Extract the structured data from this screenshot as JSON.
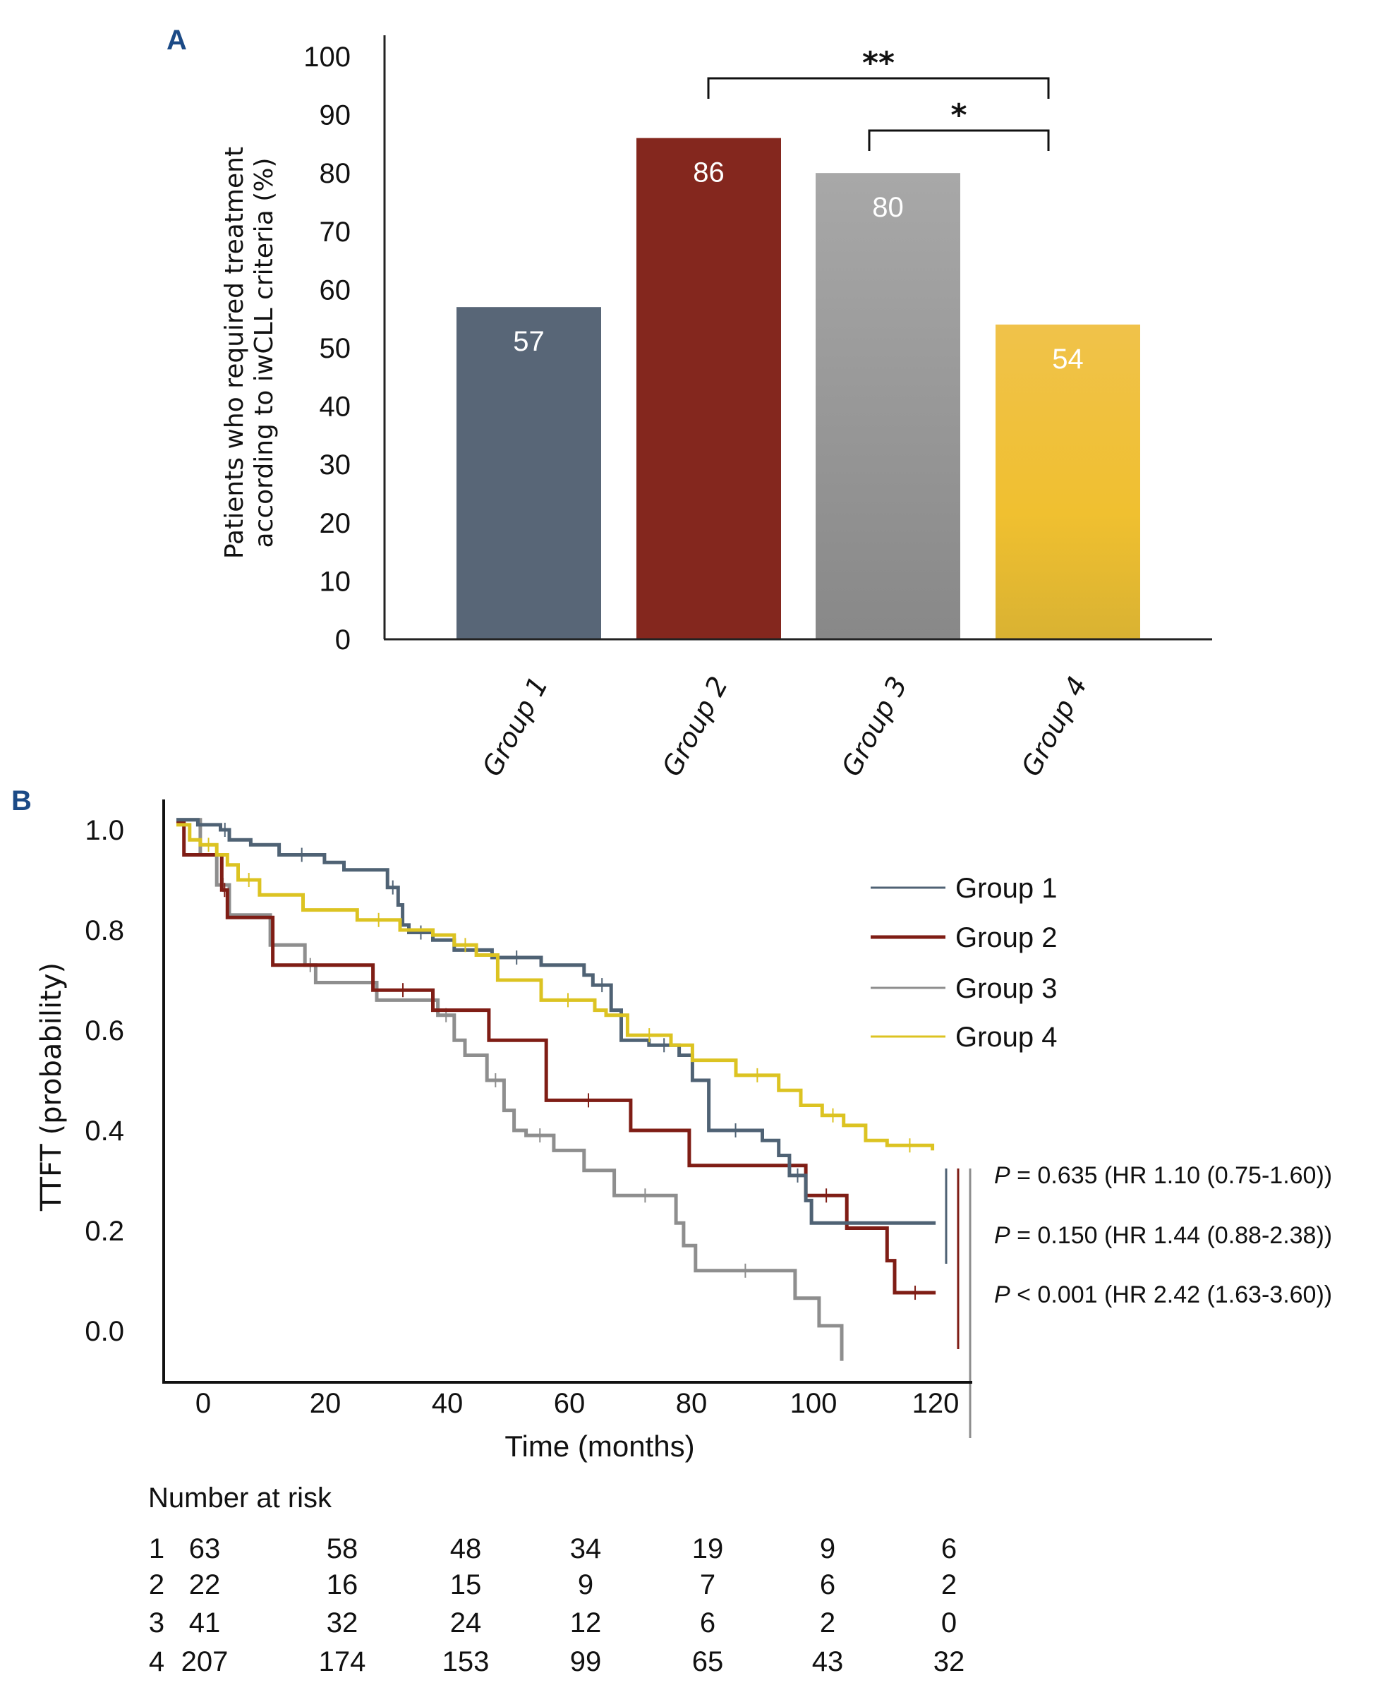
{
  "chart_data": [
    {
      "panel": "A",
      "type": "bar",
      "title": "",
      "xlabel": "",
      "ylabel": "Patients who required treatment according to iwCLL criteria (%)",
      "ylabel_lines": [
        "Patients who required treatment",
        "according to iwCLL criteria (%)"
      ],
      "ylim": [
        0,
        100
      ],
      "yticks": [
        "0",
        "10",
        "20",
        "30",
        "40",
        "50",
        "60",
        "70",
        "80",
        "90",
        "100"
      ],
      "categories": [
        "Group 1",
        "Group 2",
        "Group 3",
        "Group 4"
      ],
      "values": [
        57,
        86,
        80,
        54
      ],
      "data_labels": [
        "57",
        "86",
        "80",
        "54"
      ],
      "colors": [
        "#586677",
        "#84271e",
        "#9a9a9a",
        "#ecc232"
      ],
      "grid": false,
      "significance": [
        {
          "from": "Group 2",
          "to": "Group 4",
          "label": "**"
        },
        {
          "from": "Group 3",
          "to": "Group 4",
          "label": "*"
        }
      ]
    },
    {
      "panel": "B",
      "type": "line",
      "subtype": "kaplan-meier",
      "xlabel": "Time (months)",
      "ylabel": "TTFT (probability)",
      "xlim": [
        0,
        120
      ],
      "ylim": [
        0.0,
        1.0
      ],
      "xticks": [
        "0",
        "20",
        "40",
        "60",
        "80",
        "100",
        "120"
      ],
      "yticks": [
        "0.0",
        "0.2",
        "0.4",
        "0.6",
        "0.8",
        "1.0"
      ],
      "legend_position": "top-right",
      "grid": false,
      "series": [
        {
          "name": "Group 1",
          "color": "#4f6274",
          "points": [
            [
              0,
              1.02
            ],
            [
              3.4,
              1.01
            ],
            [
              7.0,
              1.0
            ],
            [
              8.4,
              0.98
            ],
            [
              11.8,
              0.97
            ],
            [
              16.3,
              0.95
            ],
            [
              23.5,
              0.935
            ],
            [
              26.6,
              0.92
            ],
            [
              33.5,
              0.885
            ],
            [
              35.2,
              0.85
            ],
            [
              35.9,
              0.81
            ],
            [
              36.9,
              0.795
            ],
            [
              40.7,
              0.78
            ],
            [
              44.1,
              0.76
            ],
            [
              50.1,
              0.745
            ],
            [
              57.9,
              0.73
            ],
            [
              64.7,
              0.71
            ],
            [
              66.1,
              0.69
            ],
            [
              69.0,
              0.64
            ],
            [
              70.6,
              0.58
            ],
            [
              75.0,
              0.57
            ],
            [
              79.8,
              0.55
            ],
            [
              81.9,
              0.5
            ],
            [
              84.5,
              0.4
            ],
            [
              93.0,
              0.38
            ],
            [
              95.6,
              0.35
            ],
            [
              97.3,
              0.31
            ],
            [
              99.9,
              0.26
            ],
            [
              100.8,
              0.215
            ],
            [
              120.5,
              0.215
            ]
          ]
        },
        {
          "name": "Group 2",
          "color": "#7f1d15",
          "points": [
            [
              0,
              1.015
            ],
            [
              1.2,
              0.95
            ],
            [
              7.2,
              0.88
            ],
            [
              8.1,
              0.825
            ],
            [
              15.3,
              0.73
            ],
            [
              31.2,
              0.68
            ],
            [
              40.7,
              0.64
            ],
            [
              49.6,
              0.58
            ],
            [
              58.7,
              0.46
            ],
            [
              72.1,
              0.4
            ],
            [
              81.4,
              0.33
            ],
            [
              99.9,
              0.27
            ],
            [
              106.4,
              0.205
            ],
            [
              112.8,
              0.14
            ],
            [
              114.0,
              0.076
            ],
            [
              120.5,
              0.076
            ]
          ]
        },
        {
          "name": "Group 3",
          "color": "#8e8e8e",
          "points": [
            [
              0,
              1.02
            ],
            [
              3.8,
              0.95
            ],
            [
              6.4,
              0.89
            ],
            [
              8.4,
              0.83
            ],
            [
              14.9,
              0.77
            ],
            [
              20.4,
              0.73
            ],
            [
              22.1,
              0.695
            ],
            [
              31.8,
              0.66
            ],
            [
              41.5,
              0.63
            ],
            [
              44.1,
              0.58
            ],
            [
              45.8,
              0.55
            ],
            [
              49.3,
              0.5
            ],
            [
              52.0,
              0.44
            ],
            [
              53.6,
              0.4
            ],
            [
              55.5,
              0.39
            ],
            [
              59.9,
              0.36
            ],
            [
              64.7,
              0.32
            ],
            [
              69.5,
              0.27
            ],
            [
              79.3,
              0.215
            ],
            [
              80.5,
              0.17
            ],
            [
              82.4,
              0.12
            ],
            [
              98.2,
              0.065
            ],
            [
              102.0,
              0.01
            ],
            [
              105.6,
              -0.06
            ]
          ]
        },
        {
          "name": "Group 4",
          "color": "#dcc322",
          "points": [
            [
              0,
              1.01
            ],
            [
              2.1,
              0.98
            ],
            [
              3.8,
              0.97
            ],
            [
              6.4,
              0.95
            ],
            [
              8.1,
              0.93
            ],
            [
              9.8,
              0.9
            ],
            [
              13.2,
              0.87
            ],
            [
              20.1,
              0.84
            ],
            [
              28.7,
              0.82
            ],
            [
              35.5,
              0.8
            ],
            [
              40.7,
              0.79
            ],
            [
              44.1,
              0.77
            ],
            [
              47.6,
              0.75
            ],
            [
              51.0,
              0.7
            ],
            [
              57.9,
              0.66
            ],
            [
              66.4,
              0.64
            ],
            [
              68.2,
              0.63
            ],
            [
              71.6,
              0.59
            ],
            [
              78.5,
              0.57
            ],
            [
              81.9,
              0.54
            ],
            [
              88.8,
              0.51
            ],
            [
              95.6,
              0.48
            ],
            [
              99.1,
              0.45
            ],
            [
              102.5,
              0.43
            ],
            [
              105.9,
              0.41
            ],
            [
              109.4,
              0.38
            ],
            [
              112.8,
              0.37
            ],
            [
              120.0,
              0.36
            ]
          ]
        }
      ],
      "annotations": [
        {
          "p_label": "P",
          "text": " = 0.635 (HR 1.10 (0.75-1.60))"
        },
        {
          "p_label": "P",
          "text": " = 0.150 (HR 1.44 (0.88-2.38))"
        },
        {
          "p_label": "P",
          "text": " < 0.001 (HR 2.42 (1.63-3.60))"
        }
      ],
      "risk_table": {
        "title": "Number at risk",
        "rows": [
          {
            "group": "1",
            "values": [
              "63",
              "58",
              "48",
              "34",
              "19",
              "9",
              "6"
            ]
          },
          {
            "group": "2",
            "values": [
              "22",
              "16",
              "15",
              "9",
              "7",
              "6",
              "2"
            ]
          },
          {
            "group": "3",
            "values": [
              "41",
              "32",
              "24",
              "12",
              "6",
              "2",
              "0"
            ]
          },
          {
            "group": "4",
            "values": [
              "207",
              "174",
              "153",
              "99",
              "65",
              "43",
              "32"
            ]
          }
        ]
      }
    }
  ],
  "panels": {
    "a_label": "A",
    "b_label": "B"
  }
}
